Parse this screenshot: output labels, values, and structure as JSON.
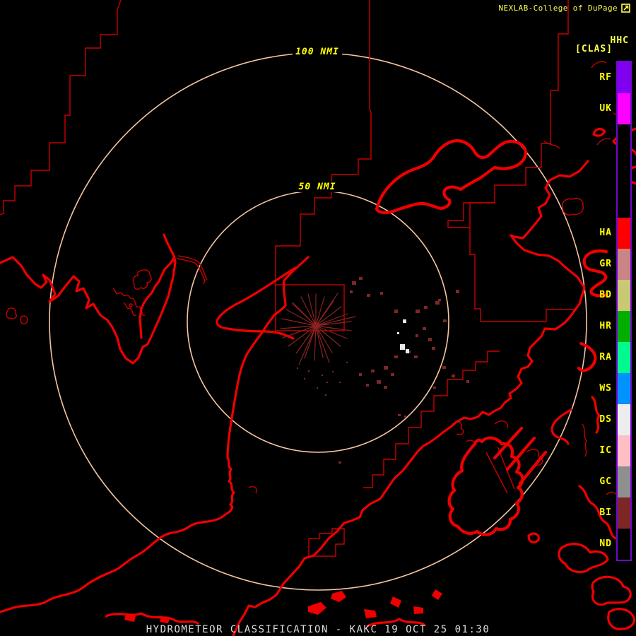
{
  "header": {
    "title": "NEXLAB-College of DuPage",
    "icon": "external-link-icon"
  },
  "legend": {
    "product_code": "HHC",
    "product_tag": "[CLAS]",
    "classes": [
      {
        "code": "RF",
        "color": "#8000f0"
      },
      {
        "code": "UK",
        "color": "#ff00ff"
      },
      {
        "code": "",
        "color": "#000000",
        "span": 3
      },
      {
        "code": "HA",
        "color": "#ff0000"
      },
      {
        "code": "GR",
        "color": "#c98585"
      },
      {
        "code": "BD",
        "color": "#c9c973"
      },
      {
        "code": "HR",
        "color": "#00ae00"
      },
      {
        "code": "RA",
        "color": "#00fa8f"
      },
      {
        "code": "WS",
        "color": "#0092ff"
      },
      {
        "code": "DS",
        "color": "#ededed"
      },
      {
        "code": "IC",
        "color": "#ffbdc4"
      },
      {
        "code": "GC",
        "color": "#8f8f8f"
      },
      {
        "code": "BI",
        "color": "#7c2626"
      },
      {
        "code": "ND",
        "color": "#000000"
      }
    ]
  },
  "rings": {
    "outer_label": "100 NMI",
    "inner_label": "50 NMI"
  },
  "status_bar": {
    "product": "HYDROMETEOR CLASSIFICATION",
    "station": "KAKC",
    "datetime": "19 OCT 25 01:30",
    "text": "HYDROMETEOR CLASSIFICATION - KAKC 19 OCT 25 01:30"
  },
  "colors": {
    "background": "#000000",
    "map_outline_thick": "#ef0000",
    "map_outline_thin": "#c90000",
    "range_ring": "#f5c5a2",
    "label_yellow": "#ffff00",
    "title_yellow": "#ffff52",
    "status_text": "#dedede",
    "legend_border": "#7008cc",
    "echo_bi": "#7e2727",
    "echo_ds": "#e9e9e9"
  }
}
